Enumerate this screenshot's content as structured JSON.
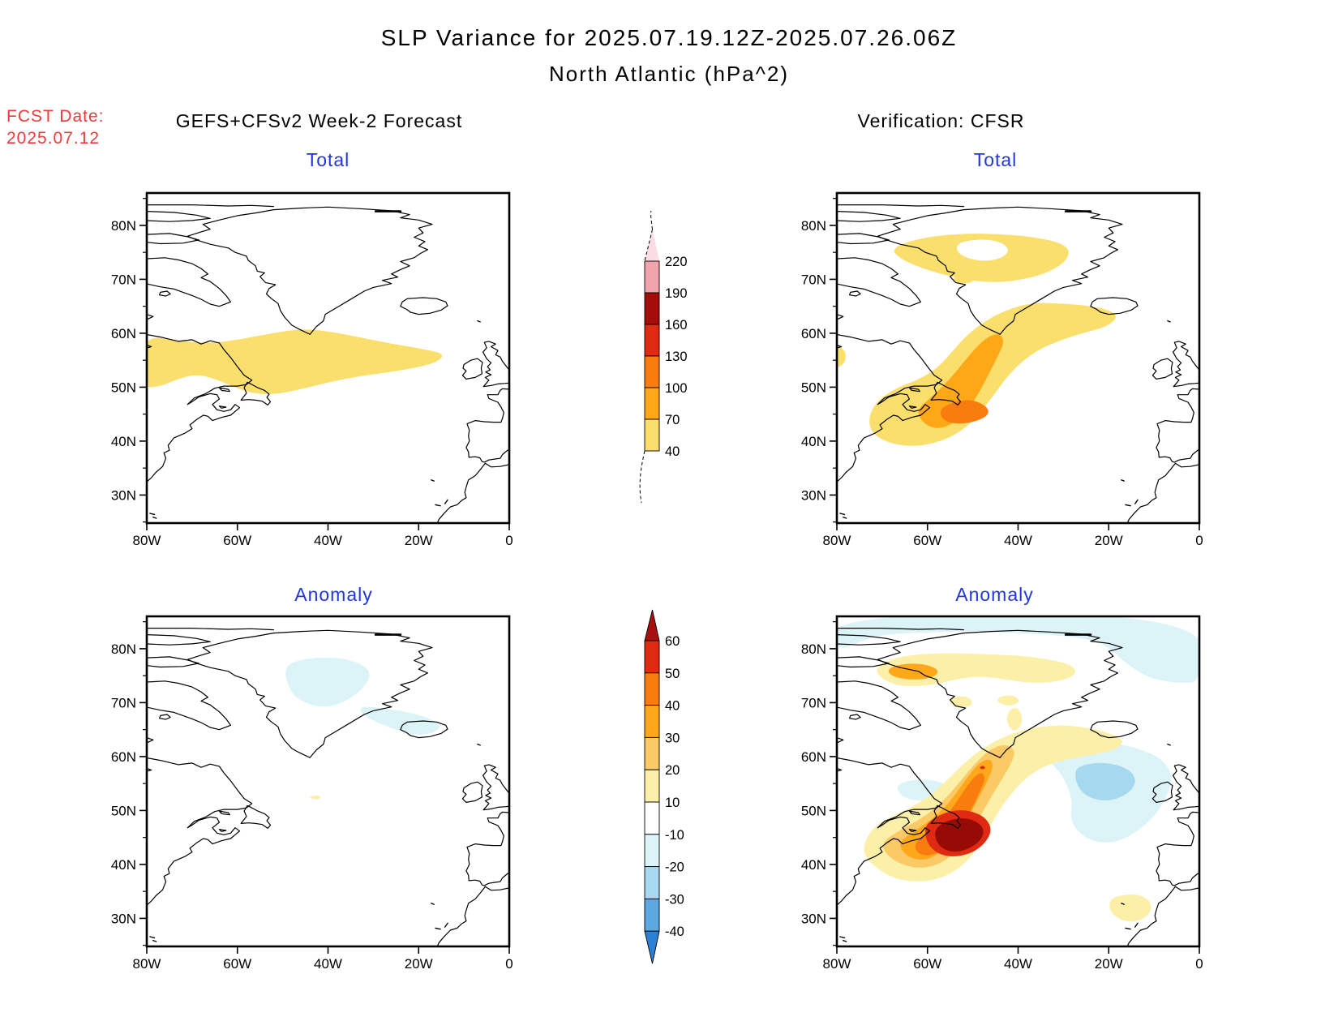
{
  "header": {
    "title": "SLP Variance for 2025.07.19.12Z-2025.07.26.06Z",
    "subtitle": "North Atlantic (hPa^2)",
    "fcst_label": "FCST Date:",
    "fcst_date": "2025.07.12",
    "forecast_column_title": "GEFS+CFSv2 Week-2 Forecast",
    "verification_column_title": "Verification: CFSR"
  },
  "colors": {
    "fcst_date_text": "#ee3a3a",
    "panel_title_text": "#2236dd",
    "coastline": "#000000",
    "map_border": "#000000"
  },
  "palette": {
    "white": "#FFFFFF",
    "total_40": "#FBDF6C",
    "total_70": "#FFA817",
    "total_100": "#F97D0E",
    "total_130": "#E02A12",
    "total_160": "#A50D0A",
    "total_190": "#F0A4AC",
    "total_220": "#FBDCE2",
    "anom_10": "#FCF0A9",
    "anom_20": "#FCC967",
    "anom_30": "#FFA81C",
    "anom_40": "#F97D0E",
    "anom_50": "#E02A12",
    "anom_60": "#970B06",
    "anom_m10": "#DCF4F8",
    "anom_m20": "#A6D8F0",
    "anom_m30": "#5CA8E0",
    "anom_m40": "#2C80D5"
  },
  "axes": {
    "lat_labels": [
      "80N",
      "70N",
      "60N",
      "50N",
      "40N",
      "30N"
    ],
    "lat_minor": [
      25,
      35,
      45,
      55,
      65,
      75,
      85
    ],
    "lon_labels": [
      "80W",
      "60W",
      "40W",
      "20W",
      "0"
    ],
    "lon_values": [
      -80,
      -60,
      -40,
      -20,
      0
    ],
    "lon_range": [
      -80,
      0
    ],
    "lat_range": [
      24.8,
      86
    ]
  },
  "panels": [
    {
      "id": "forecast-total",
      "title": "Total"
    },
    {
      "id": "verification-total",
      "title": "Total"
    },
    {
      "id": "forecast-anomaly",
      "title": "Anomaly"
    },
    {
      "id": "verification-anomaly",
      "title": "Anomaly"
    }
  ],
  "colorbars": {
    "total": {
      "boundary_labels_top_to_bottom": [
        "220",
        "190",
        "160",
        "130",
        "100",
        "70",
        "40"
      ],
      "segment_colors_top_to_bottom": [
        "#F0A4AC",
        "#A50D0A",
        "#E02A12",
        "#F97D0E",
        "#FFA817",
        "#FBDF6C"
      ],
      "above_max_color": "#FBDCE2"
    },
    "anomaly": {
      "boundary_labels_top_to_bottom": [
        "60",
        "50",
        "40",
        "30",
        "20",
        "10",
        "-10",
        "-20",
        "-30",
        "-40"
      ],
      "segment_colors_top_to_bottom": [
        "#E02A12",
        "#F97D0E",
        "#FFA81C",
        "#FCC967",
        "#FCF0A9",
        "#FFFFFF",
        "#DCF4F8",
        "#A6D8F0",
        "#5CA8E0"
      ],
      "above_max_color": "#A81010",
      "below_min_color": "#2C80D5"
    }
  },
  "chart_data": [
    {
      "panel": "GEFS+CFSv2 Week-2 Forecast - Total",
      "type": "heatmap",
      "units": "hPa^2",
      "lon_range": [
        -80,
        0
      ],
      "lat_range": [
        24.8,
        86
      ],
      "contour_levels": [
        40,
        70,
        100,
        130,
        160,
        190,
        220
      ],
      "features": [
        {
          "level_range": "40-70",
          "description": "single zonal band across the North Atlantic between ~48N and 61N stretching from 80W to about 13W; values stay below 70"
        }
      ]
    },
    {
      "panel": "Verification: CFSR - Total",
      "type": "heatmap",
      "units": "hPa^2",
      "lon_range": [
        -80,
        0
      ],
      "lat_range": [
        24.8,
        86
      ],
      "contour_levels": [
        40,
        70,
        100,
        130,
        160,
        190,
        220
      ],
      "features": [
        {
          "level_range": "40-70",
          "description": "ring-shaped area over Baffin Bay / northwest Greenland between ~69N and 78N with a hole in its middle"
        },
        {
          "level_range": "40-70",
          "description": "broad SW-NE band from ~(70W,42N) off the US coast to ~(19W,64N) near Iceland"
        },
        {
          "level_range": "70-100",
          "description": "elongated inner band from ~(60W,44N) to ~(44W,60N)"
        },
        {
          "level_range": "100-130",
          "description": "maximum centered near Newfoundland ~(52W,45.5N)"
        },
        {
          "level_range": "40-70",
          "description": "small spot on the west Greenland coast ~(51W,70N) and a sliver at the left edge near 55N"
        }
      ]
    },
    {
      "panel": "GEFS+CFSv2 Week-2 Forecast - Anomaly",
      "type": "heatmap",
      "units": "hPa^2",
      "lon_range": [
        -80,
        0
      ],
      "lat_range": [
        24.8,
        86
      ],
      "contour_levels": [
        -40,
        -30,
        -20,
        -10,
        10,
        20,
        30,
        40,
        50,
        60
      ],
      "features": [
        {
          "level_range": "-10 to -20",
          "description": "weak negative anomaly over central/east Greenland (~30-50W, 65-78N) extending toward Iceland (~14-32W, 64-69N)"
        },
        {
          "level_range": "10 to 20",
          "description": "tiny positive spot in mid-Atlantic ~(42.5W,52.3N)"
        }
      ]
    },
    {
      "panel": "Verification: CFSR - Anomaly",
      "type": "heatmap",
      "units": "hPa^2",
      "lon_range": [
        -80,
        0
      ],
      "lat_range": [
        24.8,
        86
      ],
      "contour_levels": [
        -40,
        -30,
        -20,
        -10,
        10,
        20,
        30,
        40,
        50,
        60
      ],
      "features": [
        {
          "level_range": ">60",
          "description": "strong positive anomaly core south of Newfoundland ~(53W,45N)"
        },
        {
          "level_range": "10 to 50",
          "description": "positive anomaly band extends SW-NE from ~(72W,40N) to ~(17W,64N) with an orange tongue reaching ~(46W,60N)"
        },
        {
          "level_range": "10 to 40",
          "description": "positive anomaly over Baffin Bay / NW Greenland ~(58-72W,73-79N) with orange core ~(63W,76N)"
        },
        {
          "level_range": "-20 to -30",
          "description": "negative anomaly center west of the British Isles ~(20W,55N)"
        },
        {
          "level_range": "-10 to -20",
          "description": "negative strip along the northern map edge (>80N), down the right edge to ~74N, and a patch north of the Gulf of St. Lawrence"
        },
        {
          "level_range": "10 to 20",
          "description": "small positive patch off Morocco ~(15W,32N)"
        }
      ]
    }
  ]
}
